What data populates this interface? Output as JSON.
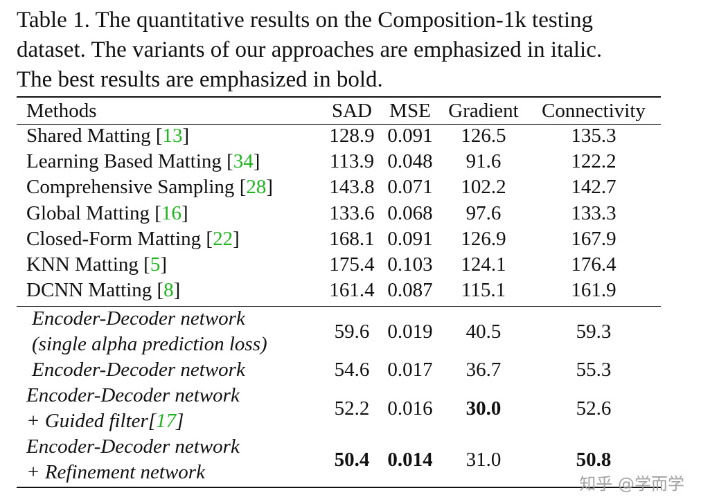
{
  "caption": [
    "Table 1. The quantitative results on the Composition-1k testing",
    "dataset. The variants of our approaches are emphasized in italic.",
    "The best results are emphasized in bold."
  ],
  "headers": {
    "methods": "Methods",
    "sad": "SAD",
    "mse": "MSE",
    "gradient": "Gradient",
    "connectivity": "Connectivity"
  },
  "baselines": [
    {
      "name": "Shared Matting",
      "ref": "13",
      "sad": "128.9",
      "mse": "0.091",
      "gradient": "126.5",
      "connectivity": "135.3"
    },
    {
      "name": "Learning Based Matting",
      "ref": "34",
      "sad": "113.9",
      "mse": "0.048",
      "gradient": "91.6",
      "connectivity": "122.2"
    },
    {
      "name": "Comprehensive Sampling",
      "ref": "28",
      "sad": "143.8",
      "mse": "0.071",
      "gradient": "102.2",
      "connectivity": "142.7"
    },
    {
      "name": "Global Matting",
      "ref": "16",
      "sad": "133.6",
      "mse": "0.068",
      "gradient": "97.6",
      "connectivity": "133.3"
    },
    {
      "name": "Closed-Form Matting",
      "ref": "22",
      "sad": "168.1",
      "mse": "0.091",
      "gradient": "126.9",
      "connectivity": "167.9"
    },
    {
      "name": "KNN Matting",
      "ref": "5",
      "sad": "175.4",
      "mse": "0.103",
      "gradient": "124.1",
      "connectivity": "176.4"
    },
    {
      "name": "DCNN Matting",
      "ref": "8",
      "sad": "161.4",
      "mse": "0.087",
      "gradient": "115.1",
      "connectivity": "161.9"
    }
  ],
  "variants": [
    {
      "line1": "Encoder-Decoder network",
      "line2": "(single alpha prediction loss)",
      "sad": "59.6",
      "mse": "0.019",
      "gradient": "40.5",
      "connectivity": "59.3"
    },
    {
      "line1": "Encoder-Decoder network",
      "sad": "54.6",
      "mse": "0.017",
      "gradient": "36.7",
      "connectivity": "55.3"
    },
    {
      "line1": "Encoder-Decoder network",
      "line2_prefix": "+ Guided filter[",
      "line2_ref": "17",
      "line2_suffix": "]",
      "sad": "52.2",
      "mse": "0.016",
      "gradient": "30.0",
      "connectivity": "52.6"
    },
    {
      "line1": "Encoder-Decoder network",
      "line2": "+ Refinement network",
      "sad": "50.4",
      "mse": "0.014",
      "gradient": "31.0",
      "connectivity": "50.8"
    }
  ],
  "watermark": "知乎 @学而学"
}
